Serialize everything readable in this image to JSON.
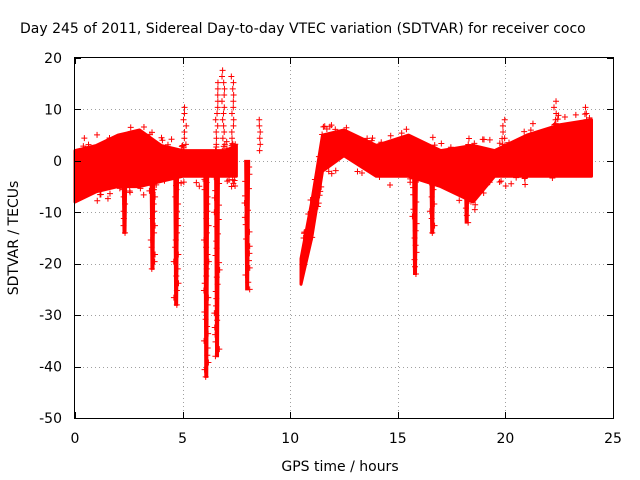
{
  "chart_data": {
    "type": "scatter",
    "title": "Day 245 of 2011, Sidereal Day-to-day VTEC variation (SDTVAR) for receiver coco",
    "xlabel": "GPS time / hours",
    "ylabel": "SDTVAR / TECUs",
    "xlim": [
      0,
      25
    ],
    "ylim": [
      -50,
      20
    ],
    "xticks": [
      0,
      5,
      10,
      15,
      20,
      25
    ],
    "yticks": [
      -50,
      -40,
      -30,
      -20,
      -10,
      0,
      10,
      20
    ],
    "xtick_labels": [
      "0",
      "5",
      "10",
      "15",
      "20",
      "25"
    ],
    "ytick_labels": [
      "-50",
      "-40",
      "-30",
      "-20",
      "-10",
      "0",
      "10",
      "20"
    ],
    "grid": true,
    "marker": "+",
    "color": "#ff0000",
    "series": [
      {
        "name": "SDTVAR",
        "envelope": [
          {
            "x": 0.0,
            "lo": -8,
            "hi": 2
          },
          {
            "x": 1.0,
            "lo": -6,
            "hi": 3
          },
          {
            "x": 2.0,
            "lo": -5,
            "hi": 5
          },
          {
            "x": 3.0,
            "lo": -5,
            "hi": 6
          },
          {
            "x": 4.0,
            "lo": -4,
            "hi": 3
          },
          {
            "x": 5.0,
            "lo": -3,
            "hi": 2
          },
          {
            "x": 6.0,
            "lo": -3,
            "hi": 2
          },
          {
            "x": 7.0,
            "lo": -3,
            "hi": 2
          },
          {
            "x": 7.5,
            "lo": -3,
            "hi": 3
          },
          {
            "x": 10.5,
            "lo": -24,
            "hi": -19
          },
          {
            "x": 11.0,
            "lo": -15,
            "hi": -8
          },
          {
            "x": 11.5,
            "lo": -2,
            "hi": 5
          },
          {
            "x": 12.5,
            "lo": 1,
            "hi": 6
          },
          {
            "x": 14.0,
            "lo": -3,
            "hi": 3
          },
          {
            "x": 15.5,
            "lo": -3,
            "hi": 5
          },
          {
            "x": 17.0,
            "lo": -5,
            "hi": 2
          },
          {
            "x": 18.5,
            "lo": -8,
            "hi": 3
          },
          {
            "x": 19.5,
            "lo": -3,
            "hi": 2
          },
          {
            "x": 21.0,
            "lo": -3,
            "hi": 5
          },
          {
            "x": 22.5,
            "lo": -3,
            "hi": 7
          },
          {
            "x": 24.0,
            "lo": -3,
            "hi": 8
          }
        ],
        "dips": [
          {
            "x": 2.3,
            "min": -14
          },
          {
            "x": 3.6,
            "min": -21
          },
          {
            "x": 4.7,
            "min": -28
          },
          {
            "x": 6.1,
            "min": -42
          },
          {
            "x": 6.6,
            "min": -38
          },
          {
            "x": 8.0,
            "min": -25
          },
          {
            "x": 15.8,
            "min": -22
          },
          {
            "x": 16.6,
            "min": -14
          },
          {
            "x": 18.2,
            "min": -12
          }
        ],
        "spikes": [
          {
            "x": 5.1,
            "max": 11
          },
          {
            "x": 6.6,
            "max": 16
          },
          {
            "x": 6.9,
            "max": 18
          },
          {
            "x": 7.3,
            "max": 17
          },
          {
            "x": 8.6,
            "max": 9
          },
          {
            "x": 19.9,
            "max": 9
          },
          {
            "x": 22.3,
            "max": 12
          },
          {
            "x": 23.7,
            "max": 11
          }
        ]
      }
    ]
  }
}
